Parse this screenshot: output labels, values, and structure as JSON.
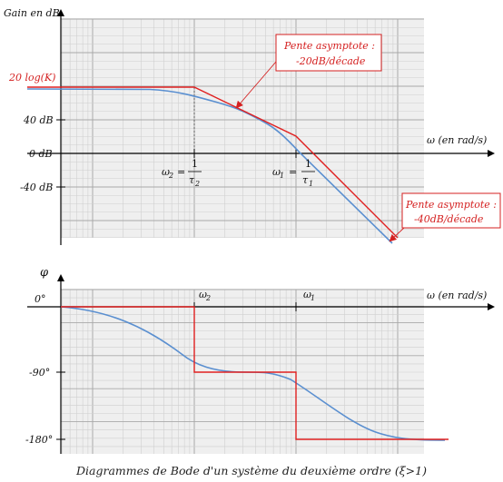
{
  "gain_panel": {
    "y_axis_title": "Gain en dB",
    "x_axis_title": "ω (en rad/s)",
    "y_ticks": [
      "40 dB",
      "0 dB",
      "-40 dB"
    ],
    "static_gain_label": "20 log(K)",
    "omega2_lhs": "ω",
    "omega2_sub": "2",
    "omega2_eq": "=",
    "omega2_num": "1",
    "omega2_den": "τ",
    "omega2_den_sub": "2",
    "omega1_lhs": "ω",
    "omega1_sub": "1",
    "omega1_eq": "=",
    "omega1_num": "1",
    "omega1_den": "τ",
    "omega1_den_sub": "1",
    "annotation_1_line1": "Pente asymptote :",
    "annotation_1_line2": "-20dB/décade",
    "annotation_2_line1": "Pente asymptote :",
    "annotation_2_line2": "-40dB/décade"
  },
  "phase_panel": {
    "y_axis_title": "φ",
    "x_axis_title": "ω (en rad/s)",
    "y_ticks": [
      "0°",
      "-90°",
      "-180°"
    ],
    "omega2_label": "ω",
    "omega2_sub": "2",
    "omega1_label": "ω",
    "omega1_sub": "1"
  },
  "caption": "Diagrammes de Bode d'un système du deuxième ordre (ξ>1)",
  "colors": {
    "asymptote": "#e02020",
    "real_curve": "#5a8fd0",
    "grid_minor": "#cfcfcf",
    "grid_major": "#a9a9a9",
    "panel_bg": "#efefef",
    "axis": "#000000"
  }
}
